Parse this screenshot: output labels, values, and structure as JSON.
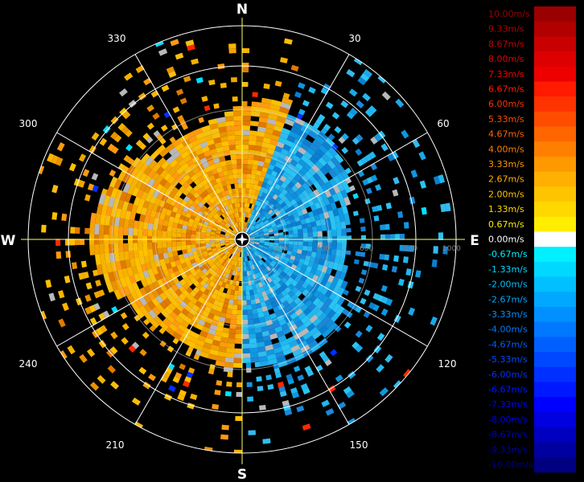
{
  "compass": {
    "north": "N",
    "east": "E",
    "south": "S",
    "west": "W"
  },
  "bearings": [
    "30",
    "60",
    "120",
    "150",
    "210",
    "240",
    "300",
    "330"
  ],
  "range_rings": [
    "200",
    "400",
    "600",
    "800",
    "1000"
  ],
  "legend": {
    "labels": [
      "10.00m/s",
      "9.33m/s",
      "8.67m/s",
      "8.00m/s",
      "7.33m/s",
      "6.67m/s",
      "6.00m/s",
      "5.33m/s",
      "4.67m/s",
      "4.00m/s",
      "3.33m/s",
      "2.67m/s",
      "2.00m/s",
      "1.33m/s",
      "0.67m/s",
      "0.00m/s",
      "-0.67m/s",
      "-1.33m/s",
      "-2.00m/s",
      "-2.67m/s",
      "-3.33m/s",
      "-4.00m/s",
      "-4.67m/s",
      "-5.33m/s",
      "-6.00m/s",
      "-6.67m/s",
      "-7.33m/s",
      "-8.00m/s",
      "-8.67m/s",
      "-9.33m/s",
      "-10.00m/s"
    ],
    "colors": [
      "#9a0000",
      "#b00000",
      "#c80000",
      "#dc0000",
      "#ee0000",
      "#ff1a00",
      "#ff3300",
      "#ff4d00",
      "#ff6600",
      "#ff8000",
      "#ff9900",
      "#ffb000",
      "#ffc400",
      "#ffd800",
      "#ffee00",
      "#ffffff",
      "#00f0ff",
      "#00d8ff",
      "#00c0ff",
      "#00a8ff",
      "#0090ff",
      "#0078ff",
      "#0060ff",
      "#0048ff",
      "#0030ff",
      "#0018ff",
      "#0000ff",
      "#0000e0",
      "#0000c0",
      "#0000a0",
      "#000080"
    ]
  }
}
